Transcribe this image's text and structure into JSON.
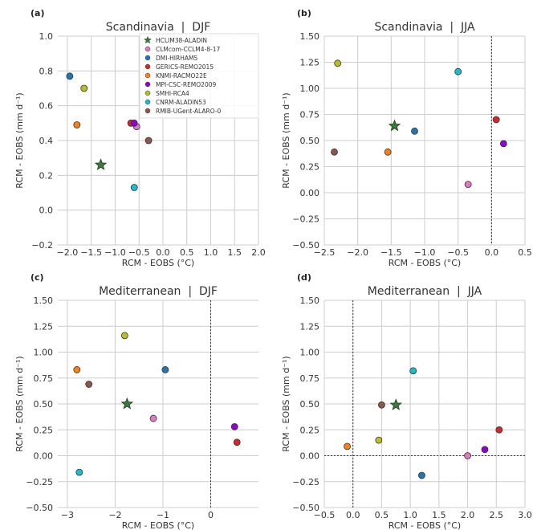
{
  "colors": {
    "background": "#ffffff",
    "grid": "#cccccc",
    "tick_text": "#333333",
    "zero_line": "#333333"
  },
  "legend": {
    "entries": [
      {
        "label": "HCLIM38-ALADIN",
        "color": "#3a7a3a",
        "marker": "star"
      },
      {
        "label": "CLMcom-CCLM4-8-17",
        "color": "#e377c2",
        "marker": "circle"
      },
      {
        "label": "DMI-HIRHAM5",
        "color": "#1f77b4",
        "marker": "circle"
      },
      {
        "label": "GERICS-REMO2015",
        "color": "#d62728",
        "marker": "circle"
      },
      {
        "label": "KNMI-RACMO22E",
        "color": "#ff7f0e",
        "marker": "circle"
      },
      {
        "label": "MPI-CSC-REMO2009",
        "color": "#9400d3",
        "marker": "circle"
      },
      {
        "label": "SMHI-RCA4",
        "color": "#bcbd22",
        "marker": "circle"
      },
      {
        "label": "CNRM-ALADIN53",
        "color": "#17becf",
        "marker": "circle"
      },
      {
        "label": "RMIB-UGent-ALARO-0",
        "color": "#8c564b",
        "marker": "circle"
      }
    ]
  },
  "chart_data": [
    {
      "panel": "(a)",
      "type": "scatter",
      "title": "Scandinavia  |  DJF",
      "xlabel": "RCM - EOBS (°C)",
      "ylabel": "RCM - EOBS (mm d⁻¹)",
      "xlim": [
        -2.2,
        2.0
      ],
      "ylim": [
        -0.2,
        1.0
      ],
      "xticks": [
        "−2.0",
        "−1.5",
        "−1.0",
        "−0.5",
        "0.0",
        "0.5",
        "1.0",
        "1.5",
        "2.0"
      ],
      "yticks": [
        "−0.2",
        "0.0",
        "0.2",
        "0.4",
        "0.6",
        "0.8",
        "1.0"
      ],
      "grid": true,
      "zero_lines": false,
      "legend_placement": "top-right",
      "points": [
        {
          "model": "HCLIM38-ALADIN",
          "x": -1.3,
          "y": 0.26
        },
        {
          "model": "CLMcom-CCLM4-8-17",
          "x": -0.55,
          "y": 0.48
        },
        {
          "model": "DMI-HIRHAM5",
          "x": -1.95,
          "y": 0.77
        },
        {
          "model": "GERICS-REMO2015",
          "x": -0.67,
          "y": 0.5
        },
        {
          "model": "KNMI-RACMO22E",
          "x": -1.8,
          "y": 0.49
        },
        {
          "model": "MPI-CSC-REMO2009",
          "x": -0.6,
          "y": 0.5
        },
        {
          "model": "SMHI-RCA4",
          "x": -1.65,
          "y": 0.7
        },
        {
          "model": "CNRM-ALADIN53",
          "x": -0.6,
          "y": 0.13
        },
        {
          "model": "RMIB-UGent-ALARO-0",
          "x": -0.3,
          "y": 0.4
        }
      ]
    },
    {
      "panel": "(b)",
      "type": "scatter",
      "title": "Scandinavia  |  JJA",
      "xlabel": "RCM - EOBS (°C)",
      "ylabel": "RCM - EOBS (mm d⁻¹)",
      "xlim": [
        -2.5,
        0.5
      ],
      "ylim": [
        -0.5,
        1.5
      ],
      "xticks": [
        "−2.5",
        "−2.0",
        "−1.5",
        "−1.0",
        "−0.5",
        "0.0",
        "0.5"
      ],
      "yticks": [
        "−0.50",
        "−0.25",
        "0.00",
        "0.25",
        "0.50",
        "0.75",
        "1.00",
        "1.25",
        "1.50"
      ],
      "grid": true,
      "zero_lines": "x",
      "points": [
        {
          "model": "HCLIM38-ALADIN",
          "x": -1.45,
          "y": 0.64
        },
        {
          "model": "CLMcom-CCLM4-8-17",
          "x": -0.35,
          "y": 0.08
        },
        {
          "model": "DMI-HIRHAM5",
          "x": -1.15,
          "y": 0.59
        },
        {
          "model": "GERICS-REMO2015",
          "x": 0.07,
          "y": 0.7
        },
        {
          "model": "KNMI-RACMO22E",
          "x": -1.55,
          "y": 0.39
        },
        {
          "model": "MPI-CSC-REMO2009",
          "x": 0.18,
          "y": 0.47
        },
        {
          "model": "SMHI-RCA4",
          "x": -2.3,
          "y": 1.24
        },
        {
          "model": "CNRM-ALADIN53",
          "x": -0.5,
          "y": 1.16
        },
        {
          "model": "RMIB-UGent-ALARO-0",
          "x": -2.35,
          "y": 0.39
        }
      ]
    },
    {
      "panel": "(c)",
      "type": "scatter",
      "title": "Mediterranean  |  DJF",
      "xlabel": "RCM - EOBS (°C)",
      "ylabel": "RCM - EOBS (mm d⁻¹)",
      "xlim": [
        -3.2,
        1.0
      ],
      "ylim": [
        -0.5,
        1.5
      ],
      "xticks": [
        "−3",
        "−2",
        "−1",
        "0"
      ],
      "yticks": [
        "−0.50",
        "−0.25",
        "0.00",
        "0.25",
        "0.50",
        "0.75",
        "1.00",
        "1.25",
        "1.50"
      ],
      "grid": true,
      "zero_lines": "x",
      "points": [
        {
          "model": "HCLIM38-ALADIN",
          "x": -1.75,
          "y": 0.5
        },
        {
          "model": "CLMcom-CCLM4-8-17",
          "x": -1.2,
          "y": 0.36
        },
        {
          "model": "DMI-HIRHAM5",
          "x": -0.95,
          "y": 0.83
        },
        {
          "model": "GERICS-REMO2015",
          "x": 0.55,
          "y": 0.13
        },
        {
          "model": "KNMI-RACMO22E",
          "x": -2.8,
          "y": 0.83
        },
        {
          "model": "MPI-CSC-REMO2009",
          "x": 0.5,
          "y": 0.28
        },
        {
          "model": "SMHI-RCA4",
          "x": -1.8,
          "y": 1.16
        },
        {
          "model": "CNRM-ALADIN53",
          "x": -2.75,
          "y": -0.16
        },
        {
          "model": "RMIB-UGent-ALARO-0",
          "x": -2.55,
          "y": 0.69
        }
      ]
    },
    {
      "panel": "(d)",
      "type": "scatter",
      "title": "Mediterranean  |  JJA",
      "xlabel": "RCM - EOBS (°C)",
      "ylabel": "RCM - EOBS (mm d⁻¹)",
      "xlim": [
        -0.5,
        3.0
      ],
      "ylim": [
        -0.5,
        1.5
      ],
      "xticks": [
        "−0.5",
        "0.0",
        "0.5",
        "1.0",
        "1.5",
        "2.0",
        "2.5",
        "3.0"
      ],
      "yticks": [
        "−0.50",
        "−0.25",
        "0.00",
        "0.25",
        "0.50",
        "0.75",
        "1.00",
        "1.25",
        "1.50"
      ],
      "grid": true,
      "zero_lines": "xy",
      "points": [
        {
          "model": "HCLIM38-ALADIN",
          "x": 0.75,
          "y": 0.49
        },
        {
          "model": "CLMcom-CCLM4-8-17",
          "x": 2.0,
          "y": 0.0
        },
        {
          "model": "DMI-HIRHAM5",
          "x": 1.2,
          "y": -0.19
        },
        {
          "model": "GERICS-REMO2015",
          "x": 2.55,
          "y": 0.25
        },
        {
          "model": "KNMI-RACMO22E",
          "x": -0.1,
          "y": 0.09
        },
        {
          "model": "MPI-CSC-REMO2009",
          "x": 2.3,
          "y": 0.06
        },
        {
          "model": "SMHI-RCA4",
          "x": 0.45,
          "y": 0.15
        },
        {
          "model": "CNRM-ALADIN53",
          "x": 1.05,
          "y": 0.82
        },
        {
          "model": "RMIB-UGent-ALARO-0",
          "x": 0.5,
          "y": 0.49
        }
      ]
    }
  ]
}
